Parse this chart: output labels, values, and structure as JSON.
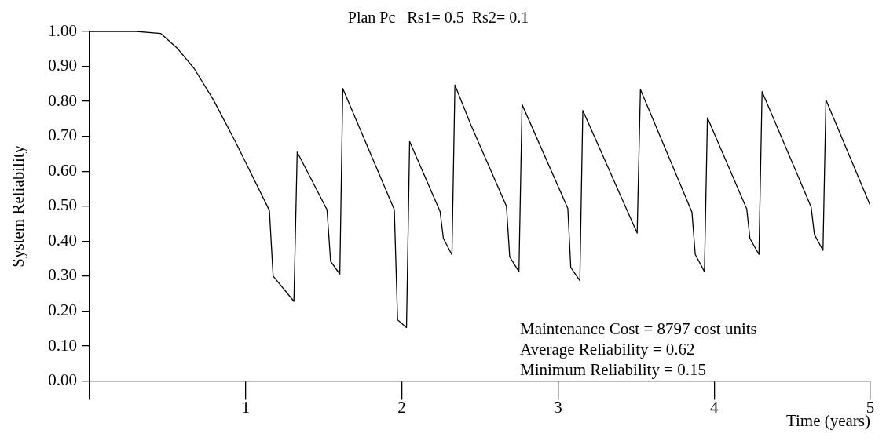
{
  "chart_data": {
    "type": "line",
    "title": "Plan Pc   Rs1= 0.5  Rs2= 0.1",
    "xlabel": "Time (years)",
    "ylabel": "System Reliability",
    "series": [
      {
        "color": "#000000",
        "x": [
          0,
          0.3,
          0.457,
          0.564,
          0.67,
          0.794,
          0.936,
          1.152,
          1.176,
          1.309,
          1.33,
          1.521,
          1.544,
          1.603,
          1.622,
          1.952,
          1.973,
          2.03,
          2.05,
          2.245,
          2.266,
          2.321,
          2.34,
          2.443,
          2.67,
          2.691,
          2.75,
          2.77,
          3.063,
          3.082,
          3.14,
          3.159,
          3.507,
          3.528,
          3.858,
          3.879,
          3.938,
          3.957,
          4.209,
          4.229,
          4.287,
          4.307,
          4.621,
          4.642,
          4.697,
          4.716,
          5.0
        ],
        "values": [
          1.0,
          1.0,
          0.994,
          0.951,
          0.894,
          0.804,
          0.683,
          0.488,
          0.3,
          0.228,
          0.655,
          0.49,
          0.342,
          0.306,
          0.837,
          0.49,
          0.175,
          0.153,
          0.685,
          0.485,
          0.408,
          0.361,
          0.847,
          0.732,
          0.5,
          0.355,
          0.313,
          0.791,
          0.494,
          0.325,
          0.287,
          0.774,
          0.423,
          0.834,
          0.483,
          0.362,
          0.313,
          0.753,
          0.492,
          0.408,
          0.362,
          0.828,
          0.498,
          0.419,
          0.374,
          0.804,
          0.502
        ]
      }
    ],
    "xlim": [
      0,
      5
    ],
    "xticks": [
      {
        "value": 0,
        "label": null
      },
      1,
      2,
      3,
      4,
      5
    ],
    "ylim": [
      0,
      1
    ],
    "yticks": [
      {
        "value": 0,
        "label": "0.00"
      },
      {
        "value": 0.1,
        "label": "0.10"
      },
      {
        "value": 0.2,
        "label": "0.20"
      },
      {
        "value": 0.3,
        "label": "0.30"
      },
      {
        "value": 0.4,
        "label": "0.40"
      },
      {
        "value": 0.5,
        "label": "0.50"
      },
      {
        "value": 0.6,
        "label": "0.60"
      },
      {
        "value": 0.7,
        "label": "0.70"
      },
      {
        "value": 0.8,
        "label": "0.80"
      },
      {
        "value": 0.9,
        "label": "0.90"
      },
      {
        "value": 1.0,
        "label": "1.00"
      }
    ],
    "annotations": [
      "Maintenance Cost = 8797 cost units",
      "Average Reliability = 0.62",
      "Minimum Reliability = 0.15"
    ],
    "marker": "none",
    "line_style": "solid"
  }
}
